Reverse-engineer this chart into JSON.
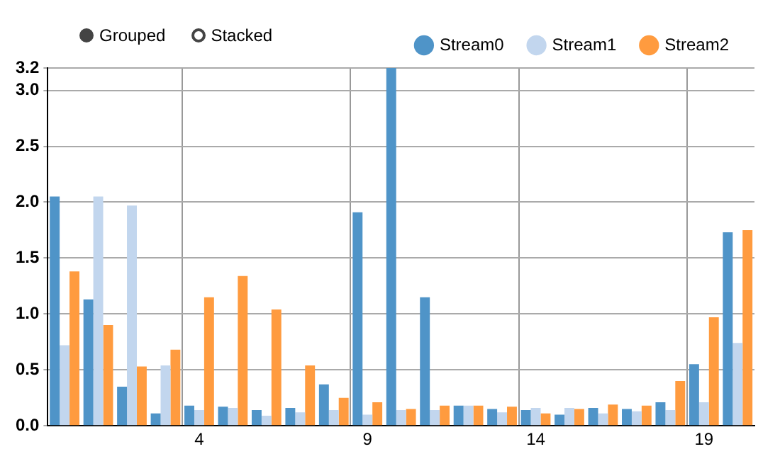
{
  "chart_data": {
    "type": "bar",
    "categories": [
      null,
      null,
      null,
      null,
      "4",
      null,
      null,
      null,
      null,
      "9",
      null,
      null,
      null,
      null,
      "14",
      null,
      null,
      null,
      null,
      "19",
      null
    ],
    "series": [
      {
        "name": "Stream0",
        "color": "#4f94c8",
        "values": [
          2.05,
          1.13,
          0.35,
          0.11,
          0.18,
          0.17,
          0.14,
          0.16,
          0.37,
          1.91,
          3.2,
          1.15,
          0.18,
          0.15,
          0.14,
          0.1,
          0.16,
          0.15,
          0.21,
          0.55,
          1.73
        ]
      },
      {
        "name": "Stream1",
        "color": "#c2d6ee",
        "values": [
          0.72,
          2.05,
          1.97,
          0.54,
          0.14,
          0.16,
          0.09,
          0.12,
          0.14,
          0.1,
          0.14,
          0.14,
          0.18,
          0.12,
          0.16,
          0.16,
          0.11,
          0.13,
          0.14,
          0.21,
          0.74
        ]
      },
      {
        "name": "Stream2",
        "color": "#ff9b3f",
        "values": [
          1.38,
          0.9,
          0.53,
          0.68,
          1.15,
          1.34,
          1.04,
          0.54,
          0.25,
          0.21,
          0.15,
          0.18,
          0.18,
          0.17,
          0.11,
          0.15,
          0.19,
          0.18,
          0.4,
          0.97,
          1.75
        ]
      }
    ],
    "ylim": [
      0,
      3.2
    ],
    "yticks": [
      {
        "value": 0,
        "label": "0.0"
      },
      {
        "value": 0.5,
        "label": "0.5"
      },
      {
        "value": 1,
        "label": "1.0"
      },
      {
        "value": 1.5,
        "label": "1.5"
      },
      {
        "value": 2,
        "label": "2.0"
      },
      {
        "value": 2.5,
        "label": "2.5"
      },
      {
        "value": 3,
        "label": "3.0"
      },
      {
        "value": 3.2,
        "label": "3.2"
      }
    ],
    "grid": true,
    "legend": "top right",
    "annotations": [
      "Grouped",
      "Stacked"
    ]
  }
}
